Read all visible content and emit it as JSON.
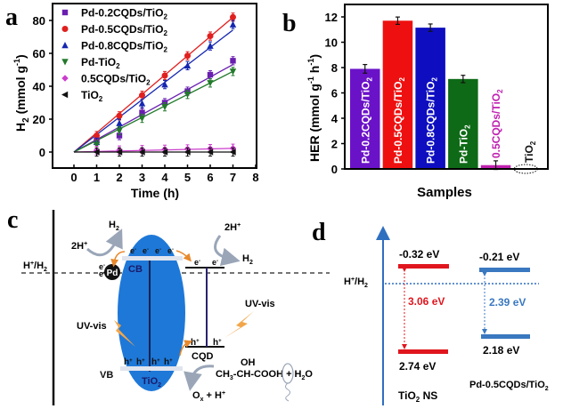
{
  "panels": {
    "a": "a",
    "b": "b",
    "c": "c",
    "d": "d"
  },
  "chart_data": [
    {
      "type": "line",
      "panel": "a",
      "title": "",
      "xlabel": "Time (h)",
      "ylabel": "H2 (mmol g-1)",
      "ylabel_parts": {
        "main": "H",
        "sub": "2",
        "rest": " (mmol g",
        "sup": "-1",
        "close": ")"
      },
      "xlim": [
        -1,
        8
      ],
      "ylim": [
        -10,
        88
      ],
      "xticks": [
        0,
        1,
        2,
        3,
        4,
        5,
        6,
        7,
        8
      ],
      "yticks": [
        0,
        20,
        40,
        60,
        80
      ],
      "legend_position": "top-left",
      "x": [
        0,
        1,
        2,
        3,
        4,
        5,
        6,
        7
      ],
      "series": [
        {
          "name": "Pd-0.2CQDs/TiO2",
          "label": "Pd-0.2CQDs/TiO",
          "sub": "2",
          "color": "#6a1fb0",
          "marker": "square",
          "values": [
            0,
            7,
            10,
            24,
            30,
            37,
            47,
            55.5
          ],
          "fit_slope": 7.6
        },
        {
          "name": "Pd-0.5CQDs/TiO2",
          "label": "Pd-0.5CQDs/TiO",
          "sub": "2",
          "color": "#e0201f",
          "marker": "circle",
          "values": [
            0,
            10,
            22,
            34.5,
            46.5,
            58.5,
            70.5,
            82
          ],
          "fit_slope": 11.7
        },
        {
          "name": "Pd-0.8CQDs/TiO2",
          "label": "Pd-0.8CQDs/TiO",
          "sub": "2",
          "color": "#1527b0",
          "marker": "triangle-up",
          "values": [
            0,
            6,
            17.5,
            29.5,
            41,
            52.5,
            64.5,
            77.5
          ],
          "fit_slope": 10.6
        },
        {
          "name": "Pd-TiO2",
          "label": "Pd-TiO",
          "sub": "2",
          "color": "#227a2a",
          "marker": "triangle-down",
          "values": [
            0,
            4.5,
            13,
            20.5,
            27.5,
            35,
            42,
            49
          ],
          "fit_slope": 7.0
        },
        {
          "name": "0.5CQDs/TiO2",
          "label": "0.5CQDs/TiO",
          "sub": "2",
          "color": "#cc3ccc",
          "marker": "diamond",
          "values": [
            0,
            1,
            1.2,
            1.5,
            1.7,
            1.9,
            2.1,
            2.3
          ],
          "fit_slope": 0.32
        },
        {
          "name": "TiO2",
          "label": "TiO",
          "sub": "2",
          "color": "#111111",
          "marker": "triangle-left",
          "values": [
            0,
            0,
            0,
            0,
            0,
            0,
            0,
            0
          ],
          "fit_slope": 0
        }
      ],
      "errors": [
        1.5,
        2.5,
        2.5,
        2.5,
        2.5,
        2.5,
        2.5,
        2.5
      ]
    },
    {
      "type": "bar",
      "panel": "b",
      "title": "",
      "xlabel": "Samples",
      "ylabel": "HER (mmol g-1 h-1)",
      "ylabel_parts": {
        "main": "HER (mmol g",
        "sup1": "-1",
        "mid": " h",
        "sup2": "-1",
        "close": ")"
      },
      "ylim": [
        0,
        12.9
      ],
      "yticks": [
        0,
        2,
        4,
        6,
        8,
        10,
        12
      ],
      "categories": [
        "Pd-0.2CQDs/TiO2",
        "Pd-0.5CQDs/TiO2",
        "Pd-0.8CQDs/TiO2",
        "Pd-TiO2",
        "0.5CQDs/TiO2",
        "TiO2"
      ],
      "bar_labels": [
        {
          "text": "Pd-0.2CQDs/TiO",
          "sub": "2"
        },
        {
          "text": "Pd-0.5CQDs/TiO",
          "sub": "2"
        },
        {
          "text": "Pd-0.8CQDs/TiO",
          "sub": "2"
        },
        {
          "text": "Pd-TiO",
          "sub": "2"
        },
        {
          "text": "0.5CQDs/TiO",
          "sub": "2"
        },
        {
          "text": "TiO",
          "sub": "2"
        }
      ],
      "values": [
        7.9,
        11.7,
        11.15,
        7.1,
        0.3,
        0
      ],
      "errors": [
        0.2,
        0.15,
        0.15,
        0.15,
        0.2,
        0
      ],
      "colors": [
        "#6a12c8",
        "#ee1010",
        "#0e0ec0",
        "#0e6a16",
        "#c020b0",
        "#ffffff"
      ],
      "label_colors": [
        "#ffffff",
        "#ffffff",
        "#ffffff",
        "#ffffff",
        "#c020b0",
        "#111111"
      ]
    }
  ],
  "diagram_c": {
    "h_h2": {
      "main": "H",
      "sup": "+",
      "slash": "/H",
      "sub": "2"
    },
    "h2_top": {
      "main": "H",
      "sub": "2"
    },
    "two_h_plus_left": {
      "main": "2H",
      "sup": "+"
    },
    "two_h_plus_right": {
      "main": "2H",
      "sup": "+"
    },
    "h2_right": {
      "main": "H",
      "sub": "2"
    },
    "electron": {
      "main": "e",
      "sup": "-"
    },
    "hole": {
      "main": "h",
      "sup": "+"
    },
    "pd": "Pd",
    "cb": "CB",
    "vb": "VB",
    "tio2": {
      "main": "TiO",
      "sub": "2"
    },
    "uv_vis_left": "UV-vis",
    "uv_vis_right": "UV-vis",
    "cqd": "CQD",
    "oh": "OH",
    "lactic": {
      "a": "CH",
      "sub": "3",
      "b": "-CH-COOH + H",
      "sub2": "2",
      "c": "O"
    },
    "ox": {
      "main": "O",
      "sub": "x",
      "rest": " + H",
      "sup": "+"
    },
    "colors": {
      "tio2_blue": "#1e78d8",
      "arrow_orange": "#e8892c",
      "cqd_line": "#2a2370",
      "band_gray": "#dfe4ee"
    }
  },
  "diagram_d": {
    "h_h2": {
      "main": "H",
      "sup": "+",
      "slash": "/H",
      "sub": "2"
    },
    "tio2_cb": "-0.32 eV",
    "tio2_vb": "2.74 eV",
    "tio2_gap": "3.06 eV",
    "pd_cb": "-0.21 eV",
    "pd_vb": "2.18 eV",
    "pd_gap": "2.39 eV",
    "tio2_label": {
      "main": "TiO",
      "sub": "2",
      "rest": " NS"
    },
    "pd_label": {
      "main": "Pd-0.5CQDs/TiO",
      "sub": "2"
    },
    "colors": {
      "red": "#e0161e",
      "blue": "#3a78c0",
      "axis": "#2f6fc0"
    }
  }
}
